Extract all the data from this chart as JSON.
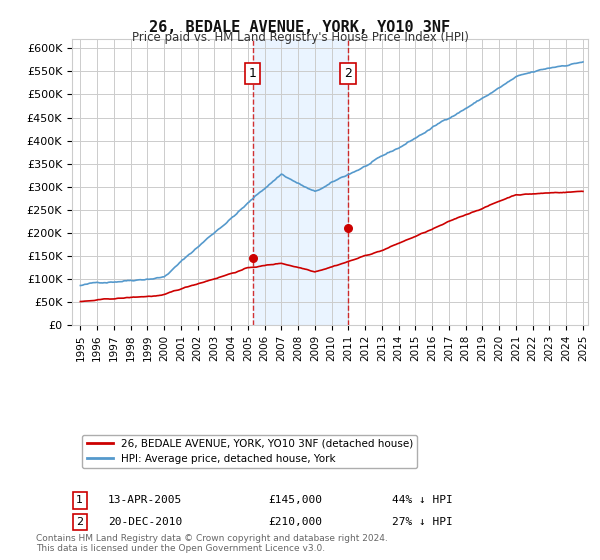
{
  "title": "26, BEDALE AVENUE, YORK, YO10 3NF",
  "subtitle": "Price paid vs. HM Land Registry's House Price Index (HPI)",
  "ylabel_ticks": [
    "£0",
    "£50K",
    "£100K",
    "£150K",
    "£200K",
    "£250K",
    "£300K",
    "£350K",
    "£400K",
    "£450K",
    "£500K",
    "£550K",
    "£600K"
  ],
  "ylim": [
    0,
    620000
  ],
  "yticks": [
    0,
    50000,
    100000,
    150000,
    200000,
    250000,
    300000,
    350000,
    400000,
    450000,
    500000,
    550000,
    600000
  ],
  "x_start_year": 1995,
  "x_end_year": 2025,
  "event1": {
    "year": 2005.28,
    "price": 145000,
    "label": "1",
    "date": "13-APR-2005",
    "hpi_pct": "44% ↓ HPI"
  },
  "event2": {
    "year": 2010.97,
    "price": 210000,
    "label": "2",
    "date": "20-DEC-2010",
    "hpi_pct": "27% ↓ HPI"
  },
  "legend_line1": "26, BEDALE AVENUE, YORK, YO10 3NF (detached house)",
  "legend_line2": "HPI: Average price, detached house, York",
  "footnote": "Contains HM Land Registry data © Crown copyright and database right 2024.\nThis data is licensed under the Open Government Licence v3.0.",
  "line_color_red": "#cc0000",
  "line_color_blue": "#5599cc",
  "background_color": "#ffffff",
  "grid_color": "#cccccc",
  "shade_color": "#ddeeff"
}
